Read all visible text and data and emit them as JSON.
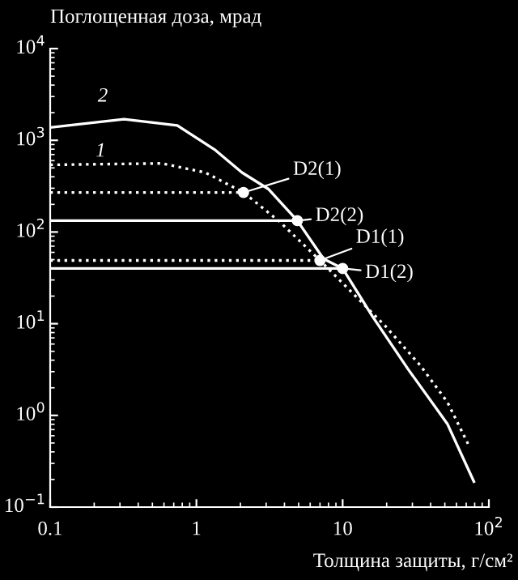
{
  "chart_data": {
    "type": "line",
    "ylabel": "Поглощенная доза, мрад",
    "xlabel": "Толщина защиты, г/см²",
    "log": "xy",
    "xlim": [
      0.1,
      100
    ],
    "ylim": [
      0.1,
      10000
    ],
    "xticks": [
      0.1,
      1,
      10,
      {
        "value": 100,
        "label": "10$^{2}$"
      }
    ],
    "yticks": [
      {
        "value": 0.1,
        "label": "10$^{−1}$"
      },
      {
        "value": 1,
        "label": "10$^{0}$"
      },
      {
        "value": 10,
        "label": "10$^{1}$"
      },
      {
        "value": 100,
        "label": "10$^{2}$"
      },
      {
        "value": 1000,
        "label": "10$^{3}$"
      },
      {
        "value": 10000,
        "label": "10$^{4}$"
      }
    ],
    "grid": false,
    "legend": false,
    "series": [
      {
        "color": "#ffffff",
        "line_style": "solid",
        "x": [
          0.1,
          0.32,
          0.74,
          1.35,
          2.05,
          3.1,
          4.9,
          7.4,
          10,
          16,
          28,
          52,
          79
        ],
        "values": [
          1380,
          1700,
          1450,
          780,
          445,
          295,
          133,
          51,
          40,
          12,
          3.2,
          0.81,
          0.19
        ]
      },
      {
        "color": "#ffffff",
        "line_style": "dotted",
        "x": [
          0.1,
          0.58,
          1.15,
          2.1,
          3.7,
          7.0,
          19.5,
          34,
          52,
          72
        ],
        "values": [
          540,
          560,
          445,
          270,
          130,
          49,
          9.5,
          3.5,
          1.4,
          0.49
        ]
      },
      {
        "color": "#ffffff",
        "line_style": "dotted",
        "x": [
          0.1,
          2.1
        ],
        "values": [
          270,
          270
        ]
      },
      {
        "color": "#ffffff",
        "line_style": "solid",
        "x": [
          0.1,
          4.9
        ],
        "values": [
          133,
          133
        ]
      },
      {
        "color": "#ffffff",
        "line_style": "dotted",
        "x": [
          0.1,
          7.0
        ],
        "values": [
          49,
          49
        ]
      },
      {
        "color": "#ffffff",
        "line_style": "solid",
        "x": [
          0.1,
          10
        ],
        "values": [
          40,
          40
        ]
      },
      {
        "type": "scatter",
        "color": "#ffffff",
        "marker": "circle",
        "x": [
          2.1,
          4.9,
          7.0,
          10
        ],
        "values": [
          270,
          133,
          49,
          40
        ]
      }
    ],
    "annotations": [
      "2",
      "1",
      {
        "text": "D2(1)",
        "x": 2.1,
        "y": 270
      },
      {
        "text": "D2(2)",
        "x": 4.9,
        "y": 133
      },
      {
        "text": "D1(1)",
        "x": 7.0,
        "y": 49
      },
      {
        "text": "D1(2)",
        "x": 10,
        "y": 40
      }
    ]
  }
}
